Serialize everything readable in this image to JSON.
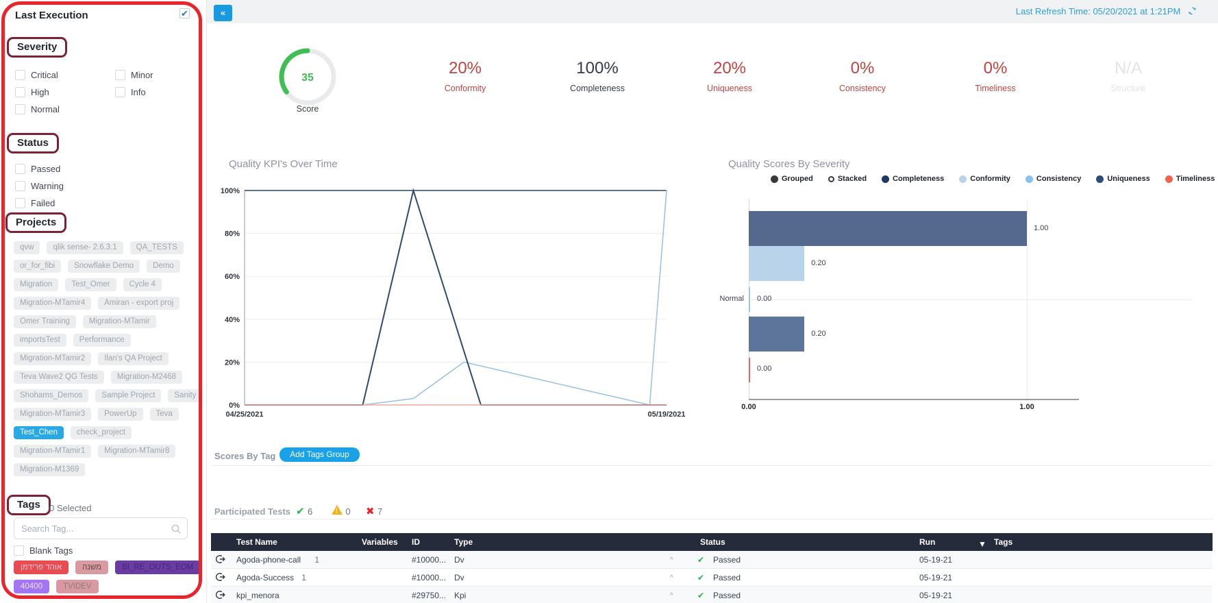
{
  "annotations": {
    "frame_color": "#e9242c",
    "label_box_color": "#7c2136",
    "highlighted_sections": [
      "Severity",
      "Status",
      "Projects",
      "Tags"
    ]
  },
  "topbar": {
    "collapse_label": "«",
    "last_refresh": "Last Refresh Time: 05/20/2021 at 1:21PM"
  },
  "sidebar": {
    "title": "Last Execution",
    "severity": {
      "label": "Severity",
      "col1": [
        "Critical",
        "High",
        "Normal"
      ],
      "col2": [
        "Minor",
        "Info"
      ]
    },
    "status": {
      "label": "Status",
      "options": [
        "Passed",
        "Warning",
        "Failed"
      ]
    },
    "projects": {
      "label": "Projects",
      "selected": "Test_Chen",
      "rows": [
        [
          "qvw",
          "qlik sense- 2.6.3.1",
          "QA_TESTS"
        ],
        [
          "or_for_fibi",
          "Snowflake Demo",
          "Demo"
        ],
        [
          "Migration",
          "Test_Omer",
          "Cycle 4"
        ],
        [
          "Migration-MTamir4",
          "Amiran - export proj"
        ],
        [
          "Omer Training",
          "Migration-MTamir"
        ],
        [
          "importsTest",
          "Performance"
        ],
        [
          "Migration-MTamir2",
          "Ilan's QA Project"
        ],
        [
          "Teva Wave2 QG Tests",
          "Migration-M2468"
        ],
        [
          "Shohams_Demos",
          "Sample Project",
          "Sanity"
        ],
        [
          "Migration-MTamir3",
          "PowerUp",
          "Teva"
        ],
        [
          "Test_Chen",
          "check_project"
        ],
        [
          "Migration-MTamir1",
          "Migration-MTamir8"
        ],
        [
          "Migration-M1369"
        ]
      ]
    },
    "tags": {
      "label": "Tags",
      "count": "0 Selected",
      "search_placeholder": "Search Tag...",
      "blank_label": "Blank Tags",
      "chip_rows": [
        [
          {
            "text": "אוהד פרידמן",
            "bg": "#e94b52",
            "fg": "#ffd0d2"
          },
          {
            "text": "משנה",
            "bg": "#d89aa0",
            "fg": "#5d4a4d"
          },
          {
            "text": "BI_RE_OUTS_EOM",
            "bg": "#6a3da2",
            "fg": "#44237a"
          }
        ],
        [
          {
            "text": "40400",
            "bg": "#a475f3",
            "fg": "#ece0ff"
          },
          {
            "text": "TVIDEV",
            "bg": "#d89aa0",
            "fg": "#8d7a80"
          }
        ]
      ]
    }
  },
  "kpis": {
    "gauge": {
      "value": "35",
      "label": "Score",
      "percent": 35,
      "color": "#3fbf52"
    },
    "items": [
      {
        "value": "20%",
        "label": "Conformity",
        "color": "#bf4340"
      },
      {
        "value": "100%",
        "label": "Completeness",
        "color": "#343b46"
      },
      {
        "value": "20%",
        "label": "Uniqueness",
        "color": "#bf4340"
      },
      {
        "value": "0%",
        "label": "Consistency",
        "color": "#bf4340"
      },
      {
        "value": "0%",
        "label": "Timeliness",
        "color": "#bf4340"
      },
      {
        "value": "N/A",
        "label": "Structure",
        "color": "#e1e4e7"
      }
    ]
  },
  "chart_data": [
    {
      "type": "line",
      "title": "Quality KPI's Over Time",
      "x_ticks": [
        "04/25/2021",
        "05/19/2021"
      ],
      "y_ticks": [
        "100%",
        "80%",
        "60%",
        "40%",
        "20%",
        "0%"
      ],
      "ylim": [
        0,
        100
      ],
      "grid": true,
      "series": [
        {
          "name": "Completeness",
          "color": "#5e7390",
          "width": 2,
          "points": [
            [
              0,
              100
            ],
            [
              1,
              100
            ]
          ]
        },
        {
          "name": "Conformity",
          "color": "#9dc3e6",
          "width": 1.6,
          "points": [
            [
              0,
              0
            ],
            [
              0.28,
              0
            ],
            [
              0.4,
              3
            ],
            [
              0.52,
              20
            ],
            [
              0.96,
              0
            ],
            [
              1,
              100
            ]
          ]
        },
        {
          "name": "Uniqueness",
          "color": "#2d4b70",
          "width": 2,
          "points": [
            [
              0,
              0
            ],
            [
              0.28,
              0
            ],
            [
              0.4,
              100
            ],
            [
              0.56,
              0
            ],
            [
              1,
              0
            ]
          ]
        },
        {
          "name": "Timeliness",
          "color": "#f2a79d",
          "width": 1.6,
          "points": [
            [
              0,
              0
            ],
            [
              1,
              0
            ]
          ]
        }
      ]
    },
    {
      "type": "bar",
      "orientation": "horizontal",
      "title": "Quality Scores By Severity",
      "category": "Normal",
      "xlim": [
        0,
        1
      ],
      "x_ticks": [
        "0.00",
        "1.00"
      ],
      "legend": [
        {
          "label": "Grouped",
          "shape": "dot",
          "color": "#3a3a3a"
        },
        {
          "label": "Stacked",
          "shape": "ring",
          "color": "#3a3a3a"
        },
        {
          "label": "Completeness",
          "shape": "dot",
          "color": "#1d3a66"
        },
        {
          "label": "Conformity",
          "shape": "dot",
          "color": "#b9d3ea"
        },
        {
          "label": "Consistency",
          "shape": "dot",
          "color": "#86c1f0"
        },
        {
          "label": "Uniqueness",
          "shape": "dot",
          "color": "#2e4d7b"
        },
        {
          "label": "Timeliness",
          "shape": "dot",
          "color": "#f0634f"
        }
      ],
      "bars": [
        {
          "name": "Completeness",
          "value": 1.0,
          "label": "1.00",
          "color": "#55698f"
        },
        {
          "name": "Conformity",
          "value": 0.2,
          "label": "0.20",
          "color": "#b9d3ea"
        },
        {
          "name": "Consistency",
          "value": 0.0,
          "label": "0.00",
          "color": "#9ac4ec"
        },
        {
          "name": "Uniqueness",
          "value": 0.2,
          "label": "0.20",
          "color": "#5e759b"
        },
        {
          "name": "Timeliness",
          "value": 0.0,
          "label": "0.00",
          "color": "#e4685c"
        }
      ]
    }
  ],
  "scores_by_tag": {
    "label": "Scores By Tag",
    "button_label": "Add Tags Group"
  },
  "participated": {
    "label": "Participated Tests",
    "passed": "6",
    "warning": "0",
    "failed": "7"
  },
  "table": {
    "columns": [
      "Test Name",
      "Variables",
      "ID",
      "Type",
      "Status",
      "Run",
      "Tags"
    ],
    "rows": [
      {
        "name": "Agoda-phone-call",
        "count": "1",
        "variables": "",
        "id": "#10000...",
        "type": "Dv",
        "status": "Passed",
        "run": "05-19-21",
        "tags": ""
      },
      {
        "name": "Agoda-Success",
        "count": "1",
        "variables": "",
        "id": "#10000...",
        "type": "Dv",
        "status": "Passed",
        "run": "05-19-21",
        "tags": ""
      },
      {
        "name": "kpi_menora",
        "count": "",
        "variables": "",
        "id": "#29750...",
        "type": "Kpi",
        "status": "Passed",
        "run": "05-19-21",
        "tags": ""
      }
    ]
  }
}
